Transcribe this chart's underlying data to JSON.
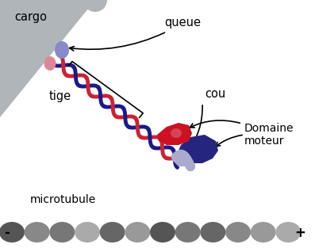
{
  "bg_color": "#ffffff",
  "figsize": [
    3.97,
    3.18
  ],
  "dpi": 100,
  "cargo_color": "#b0b5ba",
  "strand_red": "#cc2233",
  "strand_blue": "#1a1a88",
  "queue_purple": "#8888cc",
  "queue_pink": "#dd8899",
  "neck_color": "#aaaacc",
  "motor_blue_color": "#252580",
  "motor_red_color": "#cc1122",
  "bead_colors": [
    "#555555",
    "#888888",
    "#777777",
    "#aaaaaa",
    "#666666",
    "#999999",
    "#555555",
    "#777777",
    "#666666",
    "#888888",
    "#999999",
    "#aaaaaa"
  ],
  "labels": {
    "cargo": "cargo",
    "queue": "queue",
    "tige": "tige",
    "cou": "cou",
    "domaine": "Domaine\nmoteur",
    "microtubule": "microtubule",
    "minus": "-",
    "plus": "+"
  }
}
